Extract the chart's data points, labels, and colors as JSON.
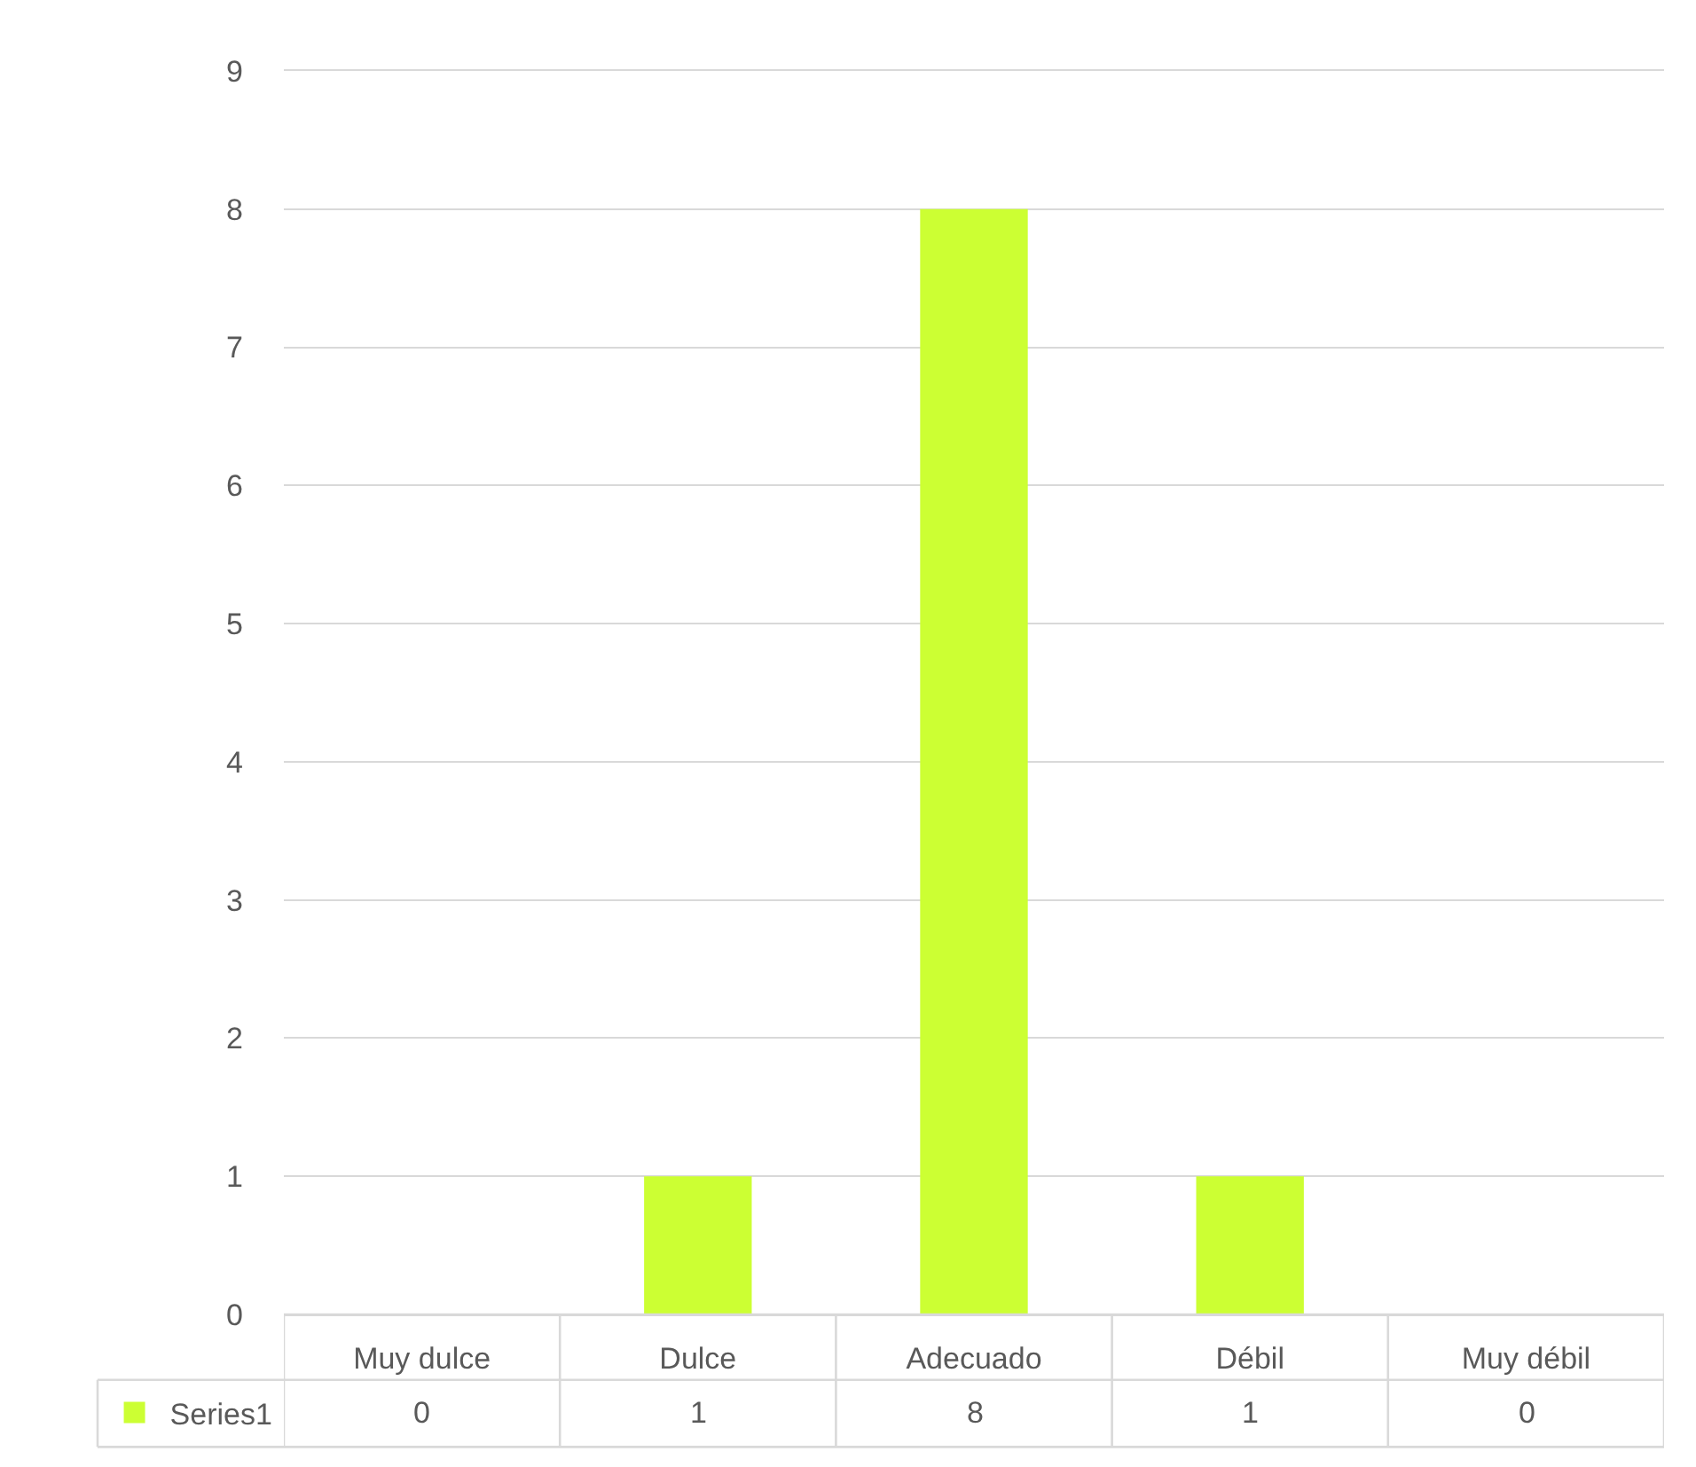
{
  "chart_data": {
    "type": "bar",
    "categories": [
      "Muy dulce",
      "Dulce",
      "Adecuado",
      "Débil",
      "Muy débil"
    ],
    "series": [
      {
        "name": "Series1",
        "color": "#ccff33",
        "values": [
          0,
          1,
          8,
          1,
          0
        ]
      }
    ],
    "ylim": [
      0,
      9
    ],
    "yticks": [
      0,
      1,
      2,
      3,
      4,
      5,
      6,
      7,
      8,
      9
    ],
    "grid": "y",
    "data_labels": true,
    "legend": "bottom"
  }
}
